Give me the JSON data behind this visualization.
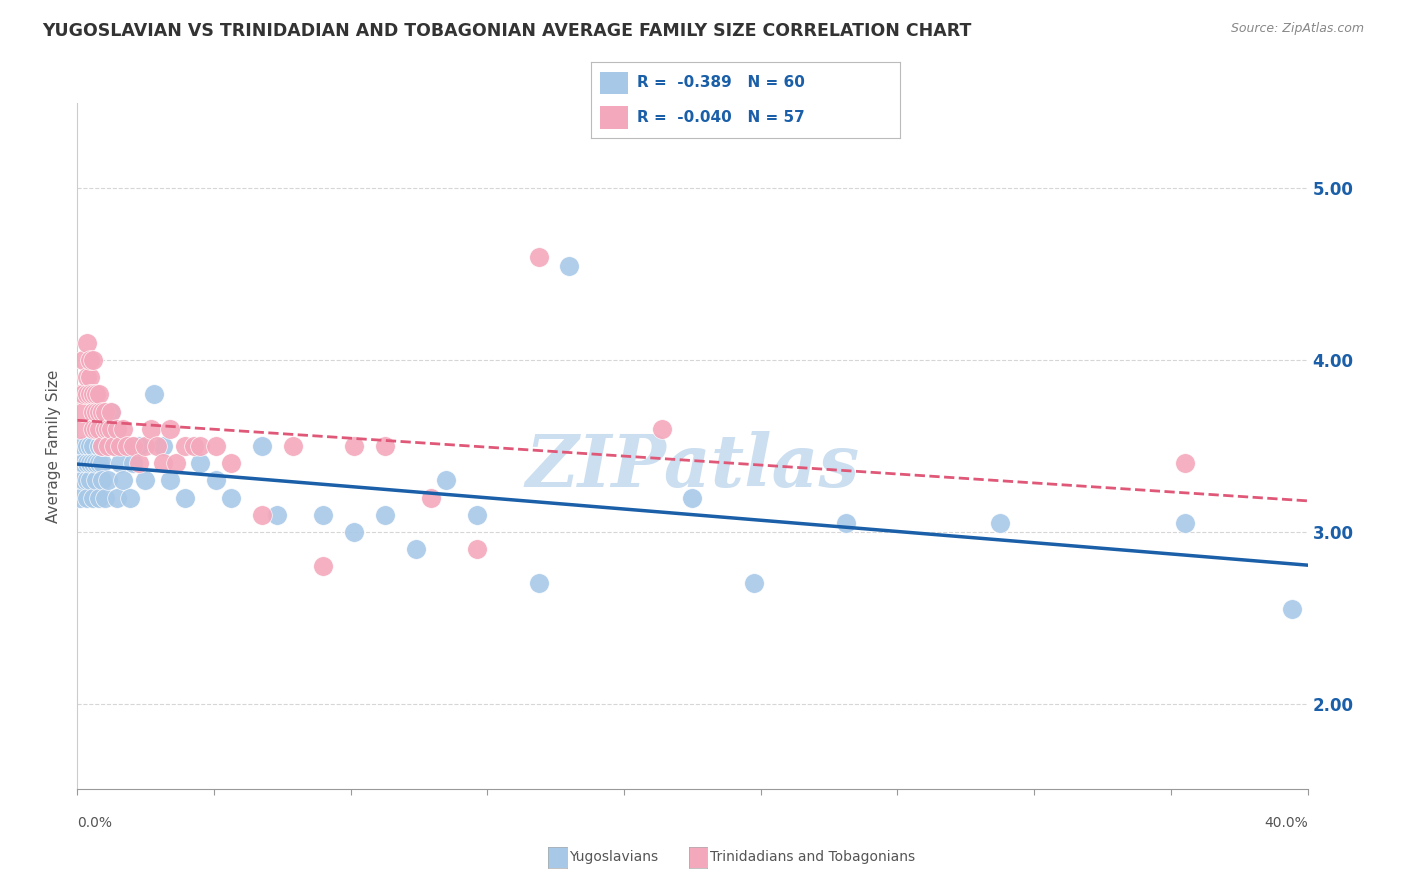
{
  "title": "YUGOSLAVIAN VS TRINIDADIAN AND TOBAGONIAN AVERAGE FAMILY SIZE CORRELATION CHART",
  "source": "Source: ZipAtlas.com",
  "ylabel": "Average Family Size",
  "yticks_right": [
    2.0,
    3.0,
    4.0,
    5.0
  ],
  "xlim": [
    0.0,
    0.4
  ],
  "ylim": [
    1.5,
    5.5
  ],
  "blue_color": "#a8c8e8",
  "pink_color": "#f4a8bc",
  "blue_line_color": "#1a5fa8",
  "pink_line_color": "#e05878",
  "background_color": "#ffffff",
  "grid_color": "#cccccc",
  "title_color": "#333333",
  "watermark_text": "ZIPatlas",
  "watermark_color": "#ccdff0",
  "blue_scatter_x": [
    0.001,
    0.001,
    0.002,
    0.002,
    0.002,
    0.003,
    0.003,
    0.003,
    0.003,
    0.004,
    0.004,
    0.004,
    0.005,
    0.005,
    0.005,
    0.006,
    0.006,
    0.007,
    0.007,
    0.007,
    0.008,
    0.008,
    0.008,
    0.009,
    0.009,
    0.01,
    0.01,
    0.011,
    0.012,
    0.013,
    0.014,
    0.015,
    0.016,
    0.017,
    0.018,
    0.02,
    0.022,
    0.025,
    0.028,
    0.03,
    0.035,
    0.04,
    0.045,
    0.05,
    0.06,
    0.065,
    0.08,
    0.09,
    0.1,
    0.11,
    0.12,
    0.13,
    0.15,
    0.16,
    0.2,
    0.22,
    0.25,
    0.3,
    0.36,
    0.395
  ],
  "blue_scatter_y": [
    3.4,
    3.2,
    3.5,
    3.3,
    3.4,
    3.3,
    3.5,
    3.2,
    3.4,
    3.5,
    3.3,
    3.4,
    3.2,
    3.5,
    3.4,
    3.3,
    3.4,
    3.5,
    3.2,
    3.4,
    3.4,
    3.5,
    3.3,
    3.6,
    3.2,
    3.5,
    3.3,
    3.7,
    3.5,
    3.2,
    3.4,
    3.3,
    3.5,
    3.2,
    3.4,
    3.5,
    3.3,
    3.8,
    3.5,
    3.3,
    3.2,
    3.4,
    3.3,
    3.2,
    3.5,
    3.1,
    3.1,
    3.0,
    3.1,
    2.9,
    3.3,
    3.1,
    2.7,
    4.55,
    3.2,
    2.7,
    3.05,
    3.05,
    3.05,
    2.55
  ],
  "pink_scatter_x": [
    0.001,
    0.001,
    0.002,
    0.002,
    0.002,
    0.003,
    0.003,
    0.003,
    0.004,
    0.004,
    0.004,
    0.005,
    0.005,
    0.005,
    0.005,
    0.006,
    0.006,
    0.006,
    0.007,
    0.007,
    0.007,
    0.008,
    0.008,
    0.009,
    0.009,
    0.01,
    0.01,
    0.011,
    0.011,
    0.012,
    0.013,
    0.014,
    0.015,
    0.016,
    0.018,
    0.02,
    0.022,
    0.024,
    0.026,
    0.028,
    0.03,
    0.032,
    0.035,
    0.038,
    0.04,
    0.045,
    0.05,
    0.06,
    0.07,
    0.08,
    0.09,
    0.1,
    0.115,
    0.13,
    0.15,
    0.19,
    0.36
  ],
  "pink_scatter_y": [
    3.6,
    3.8,
    3.7,
    4.0,
    3.8,
    3.9,
    4.1,
    3.8,
    3.9,
    4.0,
    3.8,
    3.7,
    3.6,
    3.8,
    4.0,
    3.7,
    3.8,
    3.6,
    3.7,
    3.8,
    3.6,
    3.7,
    3.5,
    3.6,
    3.7,
    3.6,
    3.5,
    3.6,
    3.7,
    3.5,
    3.6,
    3.5,
    3.6,
    3.5,
    3.5,
    3.4,
    3.5,
    3.6,
    3.5,
    3.4,
    3.6,
    3.4,
    3.5,
    3.5,
    3.5,
    3.5,
    3.4,
    3.1,
    3.5,
    2.8,
    3.5,
    3.5,
    3.2,
    2.9,
    4.6,
    3.6,
    3.4
  ]
}
